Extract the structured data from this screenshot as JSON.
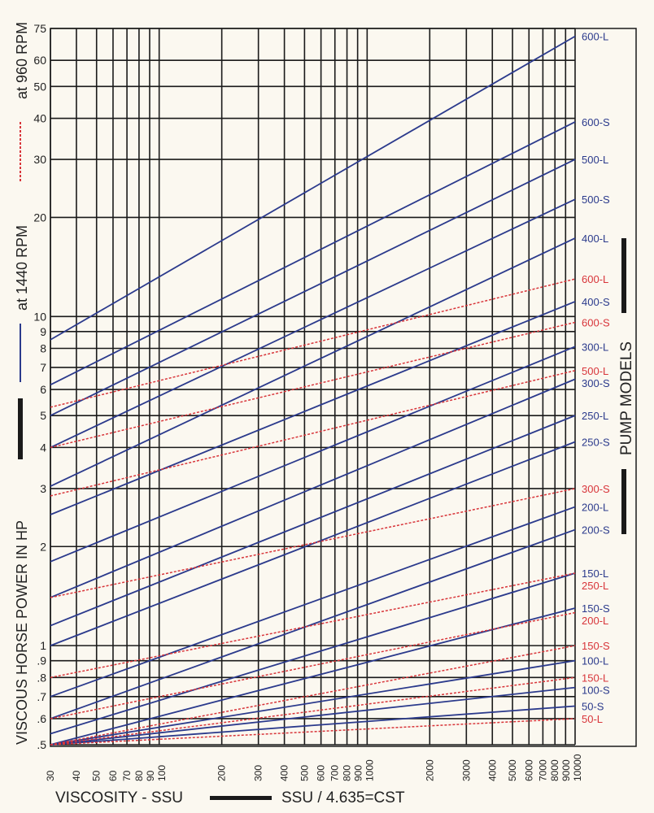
{
  "chart_data": {
    "type": "line",
    "x_scale": "log",
    "y_scale": "log",
    "xlim": [
      30,
      10000
    ],
    "ylim": [
      0.5,
      75
    ],
    "grid": true,
    "ylabel": "VISCOUS HORSE POWER IN HP",
    "xlabel": "VISCOSITY - SSU",
    "xlabel_note": "SSU / 4.635=CST",
    "right_label": "PUMP MODELS",
    "legend": [
      {
        "label": "at 1440 RPM",
        "color": "#2b3a8c",
        "style": "solid"
      },
      {
        "label": "at 960 RPM",
        "color": "#d8353a",
        "style": "dashed"
      }
    ],
    "x_ticks": [
      {
        "value": 30,
        "label": "30"
      },
      {
        "value": 40,
        "label": "40"
      },
      {
        "value": 50,
        "label": "50"
      },
      {
        "value": 60,
        "label": "60"
      },
      {
        "value": 70,
        "label": "70"
      },
      {
        "value": 80,
        "label": "80"
      },
      {
        "value": 90,
        "label": "90"
      },
      {
        "value": 100,
        "label": "100"
      },
      {
        "value": 200,
        "label": "200"
      },
      {
        "value": 300,
        "label": "300"
      },
      {
        "value": 400,
        "label": "400"
      },
      {
        "value": 500,
        "label": "500"
      },
      {
        "value": 600,
        "label": "600"
      },
      {
        "value": 700,
        "label": "700"
      },
      {
        "value": 800,
        "label": "800"
      },
      {
        "value": 900,
        "label": "900"
      },
      {
        "value": 1000,
        "label": "1000"
      },
      {
        "value": 2000,
        "label": "2000"
      },
      {
        "value": 3000,
        "label": "3000"
      },
      {
        "value": 4000,
        "label": "4000"
      },
      {
        "value": 5000,
        "label": "5000"
      },
      {
        "value": 6000,
        "label": "6000"
      },
      {
        "value": 7000,
        "label": "7000"
      },
      {
        "value": 8000,
        "label": "8000"
      },
      {
        "value": 9000,
        "label": "9000"
      },
      {
        "value": 10000,
        "label": "10000"
      }
    ],
    "y_ticks": [
      {
        "value": 75,
        "label": "75"
      },
      {
        "value": 60,
        "label": "60"
      },
      {
        "value": 50,
        "label": "50"
      },
      {
        "value": 40,
        "label": "40"
      },
      {
        "value": 30,
        "label": "30"
      },
      {
        "value": 20,
        "label": "20"
      },
      {
        "value": 10,
        "label": "10"
      },
      {
        "value": 9,
        "label": "9"
      },
      {
        "value": 8,
        "label": "8"
      },
      {
        "value": 7,
        "label": "7"
      },
      {
        "value": 6,
        "label": "6"
      },
      {
        "value": 5,
        "label": "5"
      },
      {
        "value": 4,
        "label": "4"
      },
      {
        "value": 3,
        "label": "3"
      },
      {
        "value": 2,
        "label": "2"
      },
      {
        "value": 1,
        "label": "1"
      },
      {
        "value": 0.9,
        "label": ".9"
      },
      {
        "value": 0.8,
        "label": ".8"
      },
      {
        "value": 0.7,
        "label": ".7"
      },
      {
        "value": 0.6,
        "label": ".6"
      },
      {
        "value": 0.5,
        "label": ".5"
      }
    ],
    "series": [
      {
        "name": "600-L",
        "rpm": 1440,
        "x": [
          30,
          10000
        ],
        "y": [
          8.5,
          71
        ]
      },
      {
        "name": "600-S",
        "rpm": 1440,
        "x": [
          30,
          10000
        ],
        "y": [
          6.2,
          39
        ]
      },
      {
        "name": "500-L",
        "rpm": 1440,
        "x": [
          30,
          10000
        ],
        "y": [
          5.0,
          30
        ]
      },
      {
        "name": "500-S",
        "rpm": 1440,
        "x": [
          30,
          10000
        ],
        "y": [
          4.0,
          22.7
        ]
      },
      {
        "name": "400-L",
        "rpm": 1440,
        "x": [
          30,
          10000
        ],
        "y": [
          3.05,
          17.3
        ]
      },
      {
        "name": "400-S",
        "rpm": 1440,
        "x": [
          30,
          10000
        ],
        "y": [
          2.5,
          11.1
        ]
      },
      {
        "name": "300-L",
        "rpm": 1440,
        "x": [
          30,
          10000
        ],
        "y": [
          1.8,
          8.1
        ]
      },
      {
        "name": "300-S",
        "rpm": 1440,
        "x": [
          30,
          10000
        ],
        "y": [
          1.4,
          6.45
        ]
      },
      {
        "name": "250-L",
        "rpm": 1440,
        "x": [
          30,
          10000
        ],
        "y": [
          1.15,
          5.0
        ]
      },
      {
        "name": "250-S",
        "rpm": 1440,
        "x": [
          30,
          10000
        ],
        "y": [
          1.0,
          4.16
        ]
      },
      {
        "name": "200-L",
        "rpm": 1440,
        "x": [
          30,
          10000
        ],
        "y": [
          0.7,
          2.64
        ]
      },
      {
        "name": "200-S",
        "rpm": 1440,
        "x": [
          30,
          10000
        ],
        "y": [
          0.6,
          2.25
        ]
      },
      {
        "name": "150-L",
        "rpm": 1440,
        "x": [
          30,
          10000
        ],
        "y": [
          0.54,
          1.66
        ]
      },
      {
        "name": "150-S",
        "rpm": 1440,
        "x": [
          30,
          10000
        ],
        "y": [
          0.5,
          1.3
        ]
      },
      {
        "name": "100-L",
        "rpm": 1440,
        "x": [
          30,
          10000
        ],
        "y": [
          0.5,
          0.9
        ]
      },
      {
        "name": "100-S",
        "rpm": 1440,
        "x": [
          30,
          10000
        ],
        "y": [
          0.5,
          0.746
        ]
      },
      {
        "name": "50-S",
        "rpm": 1440,
        "x": [
          30,
          10000
        ],
        "y": [
          0.5,
          0.655
        ]
      },
      {
        "name": "600-L",
        "rpm": 960,
        "x": [
          30,
          10000
        ],
        "y": [
          5.3,
          13.0
        ]
      },
      {
        "name": "600-S",
        "rpm": 960,
        "x": [
          30,
          10000
        ],
        "y": [
          4.0,
          9.6
        ]
      },
      {
        "name": "500-L",
        "rpm": 960,
        "x": [
          30,
          10000
        ],
        "y": [
          2.85,
          6.85
        ]
      },
      {
        "name": "300-S",
        "rpm": 960,
        "x": [
          30,
          10000
        ],
        "y": [
          1.4,
          3.0
        ]
      },
      {
        "name": "250-L",
        "rpm": 960,
        "x": [
          30,
          10000
        ],
        "y": [
          0.8,
          1.66
        ]
      },
      {
        "name": "200-L",
        "rpm": 960,
        "x": [
          30,
          10000
        ],
        "y": [
          0.6,
          1.26
        ]
      },
      {
        "name": "150-S",
        "rpm": 960,
        "x": [
          30,
          10000
        ],
        "y": [
          0.5,
          1.0
        ]
      },
      {
        "name": "150-L",
        "rpm": 960,
        "x": [
          30,
          10000
        ],
        "y": [
          0.5,
          0.8
        ]
      },
      {
        "name": "50-L",
        "rpm": 960,
        "x": [
          30,
          10000
        ],
        "y": [
          0.5,
          0.6
        ]
      }
    ]
  }
}
